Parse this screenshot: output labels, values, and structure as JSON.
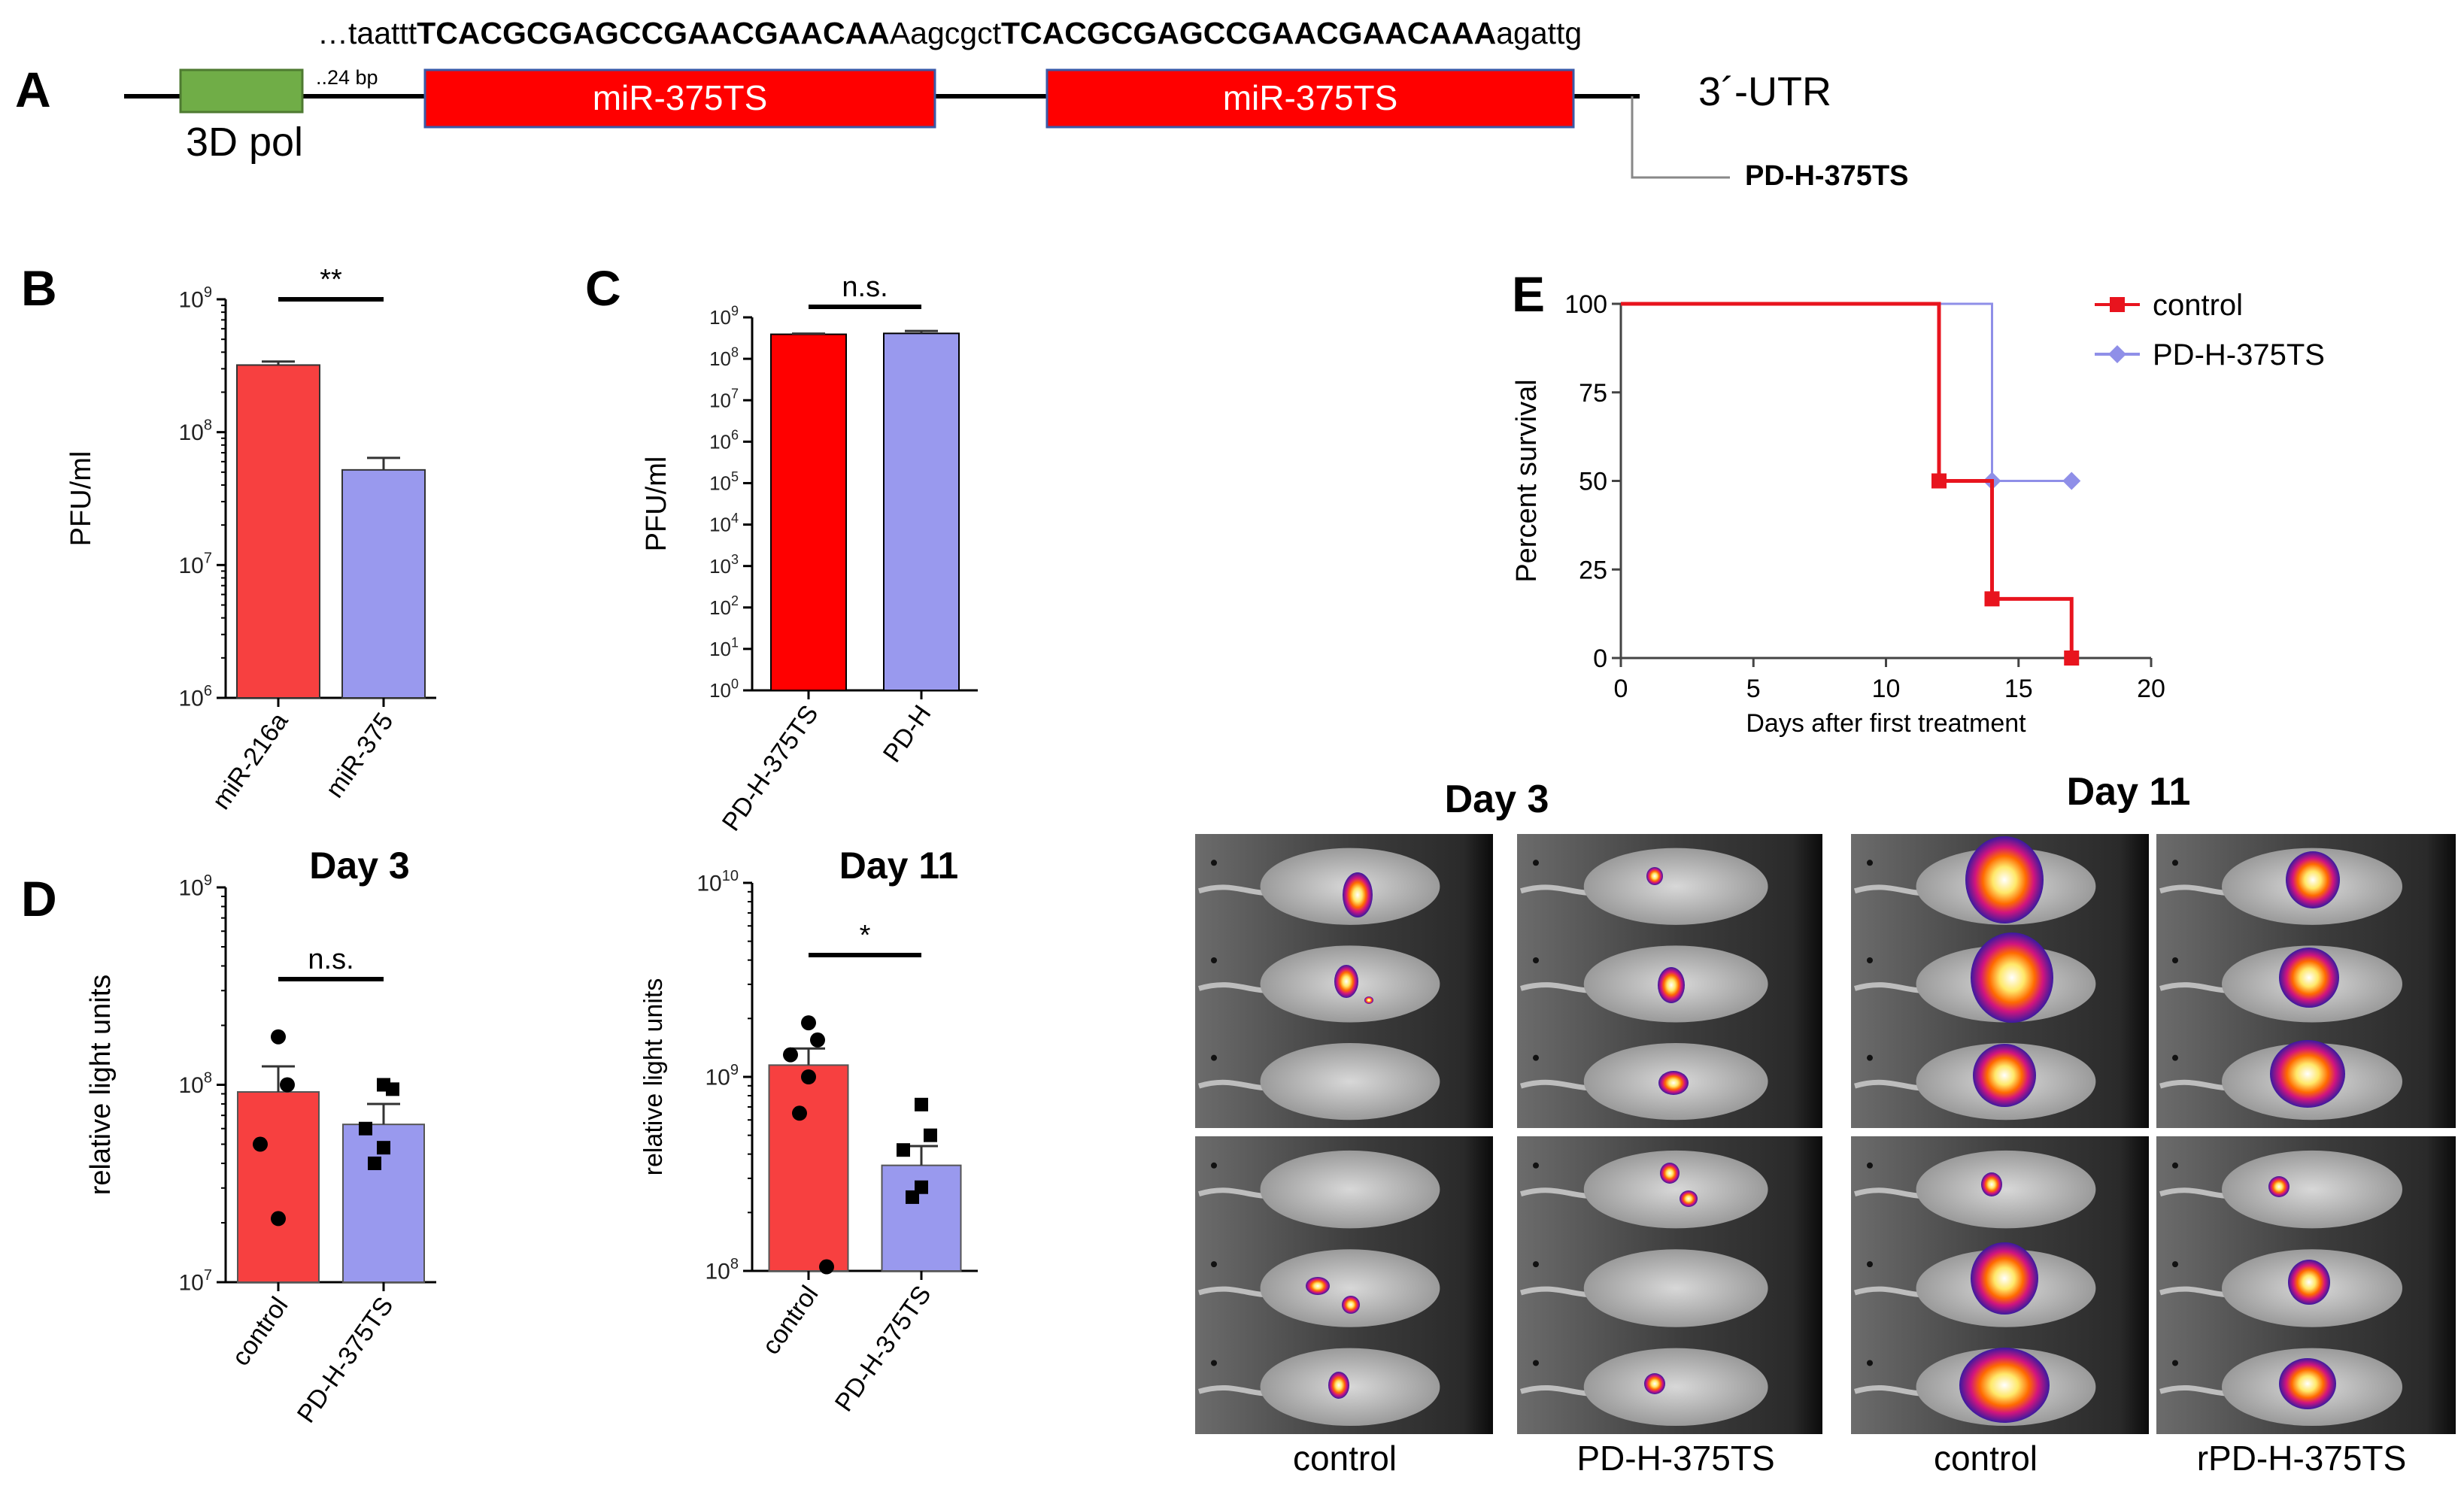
{
  "panel_a": {
    "letter": "A",
    "seq_prefix": "…taattt",
    "seq_ts1": "TCACGCGAGCCGAACGAACAA",
    "seq_mid": "Aagcgct",
    "seq_ts2": "TCACGCGAGCCGAACGAACAAA",
    "seq_suffix": "agattg",
    "spacer_label": "..24 bp",
    "box_3dpol": "3D pol",
    "box_ts1": "miR-375TS",
    "box_ts2": "miR-375TS",
    "utr_label": "3´-UTR",
    "construct_label": "PD-H-375TS",
    "colors": {
      "pol": "#70ad47",
      "ts": "#ff0000",
      "line": "#000000"
    }
  },
  "panel_labels": {
    "b": "B",
    "c": "C",
    "d": "D",
    "e": "E"
  },
  "imaging": {
    "day3_title": "Day 3",
    "day11_title": "Day 11",
    "captions": [
      "control",
      "PD-H-375TS",
      "control",
      "rPD-H-375TS"
    ]
  },
  "chart_data": [
    {
      "id": "B",
      "type": "bar",
      "scale": "log",
      "categories": [
        "miR-216a",
        "miR-375"
      ],
      "values": [
        320000000,
        52000000
      ],
      "errors": [
        20000000,
        12000000
      ],
      "ylabel": "PFU/ml",
      "ylim": [
        1000000,
        1000000000
      ],
      "ticks": [
        {
          "v": 1000000,
          "b": "10",
          "e": "6"
        },
        {
          "v": 10000000,
          "b": "10",
          "e": "7"
        },
        {
          "v": 100000000,
          "b": "10",
          "e": "8"
        },
        {
          "v": 1000000000,
          "b": "10",
          "e": "9"
        }
      ],
      "significance": "**",
      "colors": [
        "#f74040",
        "#9999ee"
      ]
    },
    {
      "id": "C",
      "type": "bar",
      "scale": "log",
      "categories": [
        "PD-H-375TS",
        "PD-H"
      ],
      "values": [
        390000000,
        410000000
      ],
      "errors": [
        15000000,
        60000000
      ],
      "ylabel": "PFU/ml",
      "ylim": [
        1,
        1000000000
      ],
      "ticks": [
        {
          "v": 1,
          "b": "10",
          "e": "0"
        },
        {
          "v": 10,
          "b": "10",
          "e": "1"
        },
        {
          "v": 100,
          "b": "10",
          "e": "2"
        },
        {
          "v": 1000,
          "b": "10",
          "e": "3"
        },
        {
          "v": 10000,
          "b": "10",
          "e": "4"
        },
        {
          "v": 100000,
          "b": "10",
          "e": "5"
        },
        {
          "v": 1000000,
          "b": "10",
          "e": "6"
        },
        {
          "v": 10000000,
          "b": "10",
          "e": "7"
        },
        {
          "v": 100000000,
          "b": "10",
          "e": "8"
        },
        {
          "v": 1000000000,
          "b": "10",
          "e": "9"
        }
      ],
      "significance": "n.s.",
      "colors": [
        "#ff0000",
        "#9999ee"
      ]
    },
    {
      "id": "D1",
      "type": "bar",
      "scale": "log",
      "title": "Day 3",
      "categories": [
        "control",
        "PD-H-375TS"
      ],
      "values": [
        92000000,
        63000000
      ],
      "errors": [
        32000000,
        17000000
      ],
      "points": [
        [
          175000000,
          100000000,
          50000000,
          21000000
        ],
        [
          100000000,
          95000000,
          60000000,
          48000000,
          40000000
        ]
      ],
      "markers": [
        "circle",
        "square"
      ],
      "ylabel": "relative light units",
      "ylim": [
        10000000,
        1000000000
      ],
      "ticks": [
        {
          "v": 10000000,
          "b": "10",
          "e": "7"
        },
        {
          "v": 100000000,
          "b": "10",
          "e": "8"
        },
        {
          "v": 1000000000,
          "b": "10",
          "e": "9"
        }
      ],
      "significance": "n.s.",
      "colors": [
        "#f74040",
        "#9999ee"
      ]
    },
    {
      "id": "D2",
      "type": "bar",
      "scale": "log",
      "title": "Day 11",
      "categories": [
        "control",
        "PD-H-375TS"
      ],
      "values": [
        1150000000,
        350000000
      ],
      "errors": [
        250000000,
        90000000
      ],
      "points": [
        [
          1900000000,
          1550000000,
          1300000000,
          1000000000,
          650000000,
          105000000
        ],
        [
          720000000,
          500000000,
          420000000,
          270000000,
          240000000
        ]
      ],
      "markers": [
        "circle",
        "square"
      ],
      "ylabel": "relative light units",
      "ylim": [
        100000000,
        10000000000
      ],
      "ticks": [
        {
          "v": 100000000,
          "b": "10",
          "e": "8"
        },
        {
          "v": 1000000000,
          "b": "10",
          "e": "9"
        },
        {
          "v": 10000000000,
          "b": "10",
          "e": "10"
        }
      ],
      "significance": "*",
      "colors": [
        "#f74040",
        "#9999ee"
      ]
    },
    {
      "id": "E",
      "type": "line",
      "step": true,
      "xlabel": "Days after first treatment",
      "ylabel": "Percent survival",
      "xlim": [
        0,
        20
      ],
      "ylim": [
        0,
        100
      ],
      "xticks": [
        0,
        5,
        10,
        15,
        20
      ],
      "yticks": [
        0,
        25,
        50,
        75,
        100
      ],
      "series": [
        {
          "name": "control",
          "color": "#e8141e",
          "marker": "square",
          "steps": [
            [
              0,
              100
            ],
            [
              12,
              50
            ],
            [
              14,
              16.7
            ],
            [
              17,
              0
            ]
          ],
          "censored": []
        },
        {
          "name": "PD-H-375TS",
          "color": "#8f8fe8",
          "marker": "diamond",
          "steps": [
            [
              0,
              100
            ],
            [
              14,
              50
            ]
          ],
          "censored": [
            [
              17,
              50
            ]
          ]
        }
      ],
      "legend": "top-right"
    }
  ]
}
